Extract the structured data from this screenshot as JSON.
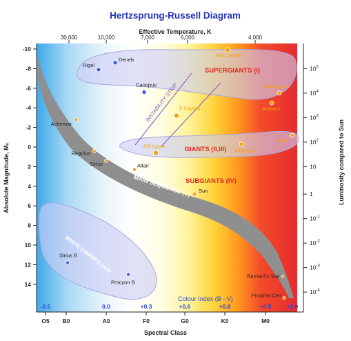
{
  "chart_data": {
    "type": "scatter",
    "title": "Hertzsprung-Russell Diagram",
    "top_axis_label": "Effective Temperature, K",
    "top_ticks": [
      "30,000",
      "10,000",
      "7,000",
      "6,000",
      "4,000"
    ],
    "left_axis_label": "Absolute Magnitude, Mᵥ",
    "left_ticks": [
      "-10",
      "-8",
      "-6",
      "-4",
      "-2",
      "0",
      "2",
      "4",
      "6",
      "8",
      "10",
      "12",
      "14"
    ],
    "ylim": [
      15,
      -10.5
    ],
    "right_axis_label": "Luminosity compared to Sun",
    "right_ticks": [
      {
        "base": "10",
        "exp": "5",
        "mag": -8.0
      },
      {
        "base": "10",
        "exp": "4",
        "mag": -5.5
      },
      {
        "base": "10",
        "exp": "3",
        "mag": -3.0
      },
      {
        "base": "10",
        "exp": "2",
        "mag": -0.5
      },
      {
        "base": "10",
        "exp": "",
        "mag": 2.0
      },
      {
        "base": "1",
        "exp": "",
        "mag": 4.8
      },
      {
        "base": "10",
        "exp": "-1",
        "mag": 7.3
      },
      {
        "base": "10",
        "exp": "-2",
        "mag": 9.8
      },
      {
        "base": "10",
        "exp": "-3",
        "mag": 12.3
      },
      {
        "base": "10",
        "exp": "-4",
        "mag": 14.8
      }
    ],
    "bottom_axis_label": "Spectral Class",
    "spectral_classes": [
      "O5",
      "B0",
      "A0",
      "F0",
      "G0",
      "K0",
      "M0"
    ],
    "colour_index_label": "Colour Index (B - V)",
    "colour_index_ticks": [
      "-0.5",
      "0.0",
      "+0.3",
      "+0.6",
      "+0.8",
      "+0.9",
      "+2.0"
    ],
    "regions": [
      "SUPERGIANTS (I)",
      "GIANTS (II,III)",
      "SUBGIANTS (IV)",
      "MAIN SEQUENCE (V)",
      "WHITE DWARFS (wd)",
      "INSTABILITY STRIP"
    ],
    "stars": [
      {
        "name": "δ Cephei",
        "mag": -3.2,
        "color": "#f4a300"
      },
      {
        "name": "RR Lyrae",
        "mag": 0.6,
        "color": "#f4a300"
      },
      {
        "name": "Deneb",
        "mag": -8.6,
        "color": "#3a55e8"
      },
      {
        "name": "Rigel",
        "mag": -7.9,
        "color": "#3a55e8"
      },
      {
        "name": "Canopus",
        "mag": -5.6,
        "color": "#3a55e8"
      },
      {
        "name": "SW Cephei",
        "mag": -9.9,
        "color": "#f4a300"
      },
      {
        "name": "Betelgeuse",
        "mag": -5.5,
        "color": "#f4a300"
      },
      {
        "name": "Antares",
        "mag": -4.5,
        "color": "#f4a300"
      },
      {
        "name": "Mira",
        "mag": -1.2,
        "color": "#f4a300"
      },
      {
        "name": "Aldebaran",
        "mag": -0.3,
        "color": "#f4a300"
      },
      {
        "name": "Achernar",
        "mag": -2.8,
        "color": "#f4a300"
      },
      {
        "name": "Regulus",
        "mag": 0.4,
        "color": "#f4a300"
      },
      {
        "name": "Sirius",
        "mag": 1.4,
        "color": "#f4a300"
      },
      {
        "name": "Altair",
        "mag": 2.3,
        "color": "#f4a300"
      },
      {
        "name": "Sun",
        "mag": 4.8,
        "color": "#f4a300"
      },
      {
        "name": "Sirius B",
        "mag": 11.8,
        "color": "#3a55e8"
      },
      {
        "name": "Procyon B",
        "mag": 13.0,
        "color": "#3a55e8"
      },
      {
        "name": "Barnard's Star",
        "mag": 13.2,
        "color": "#f4a300"
      },
      {
        "name": "Proxima Cen",
        "mag": 15.4,
        "color": "#f4a300"
      }
    ]
  }
}
